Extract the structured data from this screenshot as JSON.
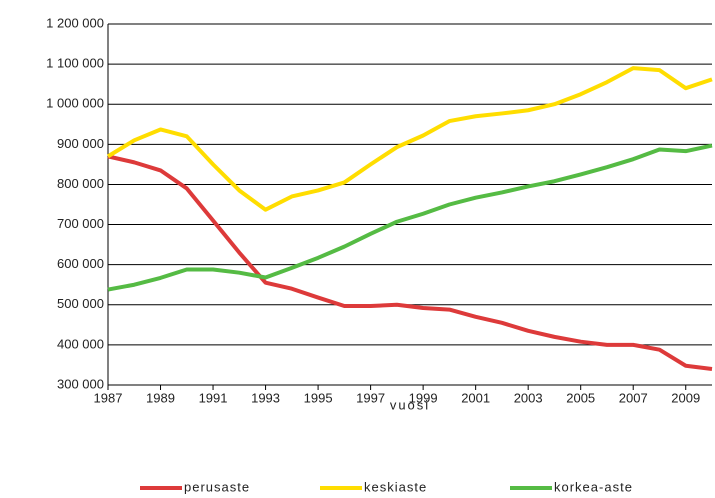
{
  "chart_data": {
    "type": "line",
    "x_label": "vuosi",
    "x": [
      1987,
      1988,
      1989,
      1990,
      1991,
      1992,
      1993,
      1994,
      1995,
      1996,
      1997,
      1998,
      1999,
      2000,
      2001,
      2002,
      2003,
      2004,
      2005,
      2006,
      2007,
      2008,
      2009,
      2010
    ],
    "xlim": [
      1987,
      2010
    ],
    "xticks": [
      1987,
      1989,
      1991,
      1993,
      1995,
      1997,
      1999,
      2001,
      2003,
      2005,
      2007,
      2009
    ],
    "ylim": [
      300000,
      1200000
    ],
    "yticks": [
      {
        "value": 300000,
        "label": "300 000"
      },
      {
        "value": 400000,
        "label": "400 000"
      },
      {
        "value": 500000,
        "label": "500 000"
      },
      {
        "value": 600000,
        "label": "600 000"
      },
      {
        "value": 700000,
        "label": "700 000"
      },
      {
        "value": 800000,
        "label": "800 000"
      },
      {
        "value": 900000,
        "label": "900 000"
      },
      {
        "value": 1000000,
        "label": "1 000 000"
      },
      {
        "value": 1100000,
        "label": "1 100 000"
      },
      {
        "value": 1200000,
        "label": "1 200 000"
      }
    ],
    "grid": true,
    "legend": "bottom",
    "series": [
      {
        "name": "perusaste",
        "color": "#dd3a3a",
        "values": [
          870000,
          855000,
          835000,
          790000,
          710000,
          630000,
          555000,
          540000,
          518000,
          497000,
          497000,
          500000,
          492000,
          488000,
          470000,
          455000,
          435000,
          420000,
          408000,
          400000,
          400000,
          388000,
          348000,
          340000
        ]
      },
      {
        "name": "keskiaste",
        "color": "#ffdd00",
        "values": [
          870000,
          910000,
          937000,
          920000,
          850000,
          785000,
          737000,
          770000,
          785000,
          805000,
          850000,
          893000,
          922000,
          958000,
          970000,
          977000,
          985000,
          1000000,
          1025000,
          1055000,
          1090000,
          1085000,
          1040000,
          1062000
        ]
      },
      {
        "name": "korkea-aste",
        "color": "#55bb44",
        "values": [
          538000,
          550000,
          567000,
          588000,
          588000,
          580000,
          568000,
          592000,
          617000,
          645000,
          677000,
          707000,
          727000,
          750000,
          767000,
          780000,
          795000,
          808000,
          825000,
          843000,
          863000,
          887000,
          883000,
          897000
        ]
      }
    ]
  }
}
